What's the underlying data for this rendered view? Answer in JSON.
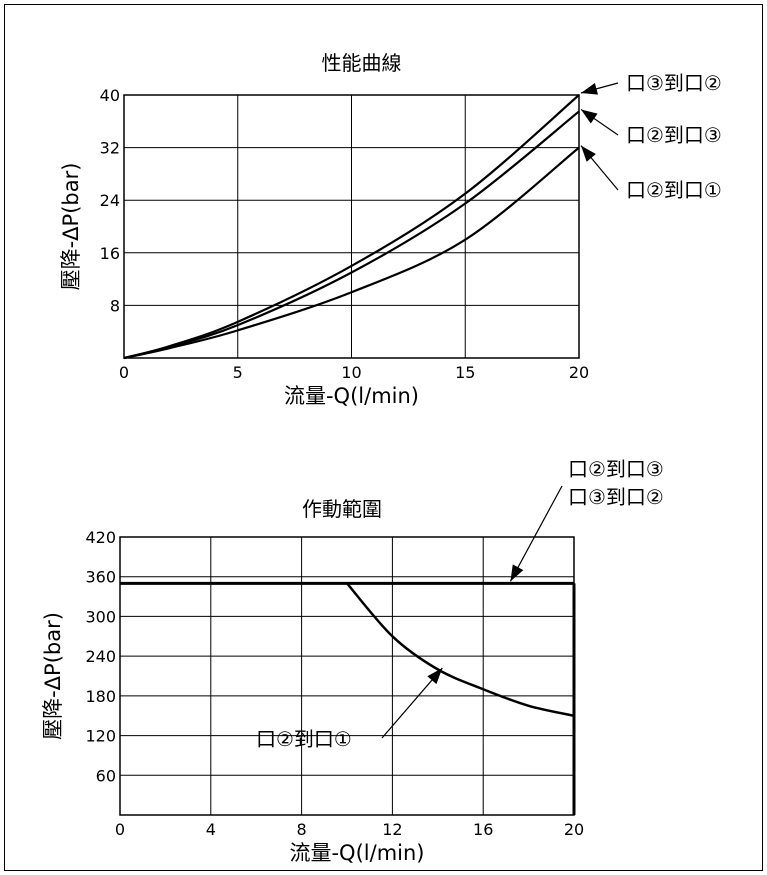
{
  "chart_data": [
    {
      "type": "line",
      "title": "性能曲線",
      "xlabel": "流量-Q(l/min)",
      "ylabel": "壓降-ΔP(bar)",
      "xlim": [
        0,
        20
      ],
      "ylim": [
        0,
        40
      ],
      "xticks": [
        0,
        5,
        10,
        15,
        20
      ],
      "yticks": [
        8,
        16,
        24,
        32,
        40
      ],
      "grid": true,
      "series": [
        {
          "name": "口③到口②",
          "x": [
            0,
            2,
            5,
            10,
            15,
            20
          ],
          "y": [
            0,
            1.8,
            5.5,
            14,
            25,
            40
          ]
        },
        {
          "name": "口②到口③",
          "x": [
            0,
            2,
            5,
            10,
            15,
            20
          ],
          "y": [
            0,
            1.7,
            5,
            13,
            23.5,
            37.5
          ]
        },
        {
          "name": "口②到口①",
          "x": [
            0,
            2,
            5,
            10,
            15,
            20
          ],
          "y": [
            0,
            1.5,
            4.2,
            10,
            18,
            32
          ]
        }
      ]
    },
    {
      "type": "line",
      "title": "作動範圍",
      "xlabel": "流量-Q(l/min)",
      "ylabel": "壓降-ΔP(bar)",
      "xlim": [
        0,
        20
      ],
      "ylim": [
        0,
        420
      ],
      "xticks": [
        0,
        4,
        8,
        12,
        16,
        20
      ],
      "yticks": [
        60,
        120,
        180,
        240,
        300,
        360,
        420
      ],
      "grid": true,
      "series": [
        {
          "name": "口②到口③ 口③到口②",
          "x": [
            0,
            20
          ],
          "y": [
            350,
            350
          ]
        },
        {
          "name": "口②到口①",
          "x": [
            10,
            12,
            14,
            16,
            18,
            20
          ],
          "y": [
            350,
            270,
            220,
            190,
            165,
            150
          ]
        }
      ],
      "boundary": {
        "x": 20,
        "y": [
          0,
          350
        ]
      }
    }
  ]
}
